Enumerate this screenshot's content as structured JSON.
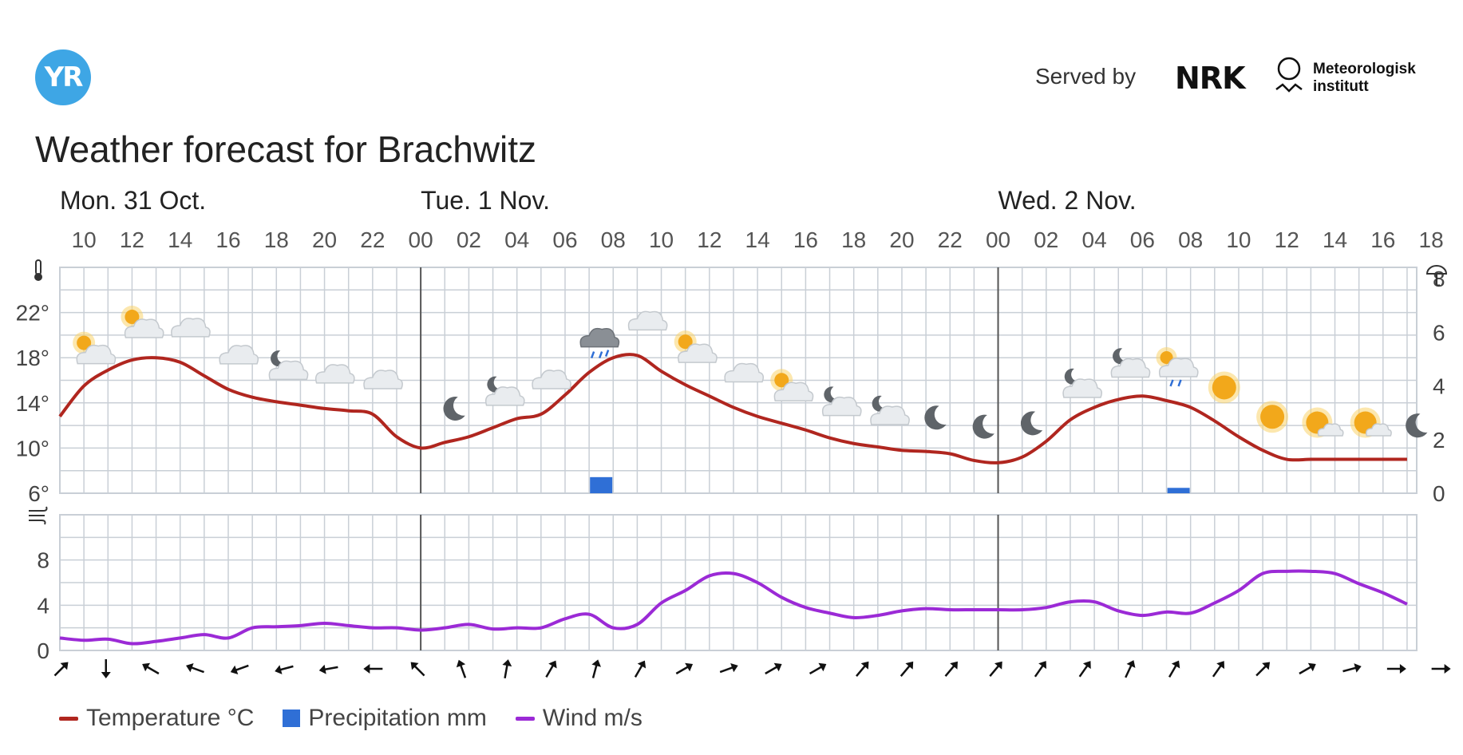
{
  "header": {
    "logo_text": "YR",
    "served_by": "Served by",
    "nrk_logo": "NRK",
    "met_logo_line1": "Meteorologisk",
    "met_logo_line2": "institutt"
  },
  "title": "Weather forecast for Brachwitz",
  "colors": {
    "temperature": "#b0261f",
    "precipitation": "#2f6fd6",
    "wind": "#9b2ad6",
    "grid": "#c9cfd6",
    "day_divider": "#555555",
    "arrow": "#111111"
  },
  "chart_data": {
    "type": "line",
    "x_unit": "hour",
    "days": [
      {
        "label": "Mon. 31 Oct.",
        "hour": 9
      },
      {
        "label": "Tue. 1 Nov.",
        "hour": 24
      },
      {
        "label": "Wed. 2 Nov.",
        "hour": 48
      }
    ],
    "hour_ticks": [
      "10",
      "12",
      "14",
      "16",
      "18",
      "20",
      "22",
      "00",
      "02",
      "04",
      "06",
      "08",
      "10",
      "12",
      "14",
      "16",
      "18",
      "20",
      "22",
      "00",
      "02",
      "04",
      "06",
      "08",
      "10",
      "12",
      "14",
      "16",
      "18"
    ],
    "x_start_hour": 9,
    "x_end_hour": 66,
    "day_dividers_hour": [
      24,
      48
    ],
    "temperature": {
      "name": "Temperature °C",
      "ylim": [
        6,
        26
      ],
      "yticks": [
        "22°",
        "18°",
        "14°",
        "10°",
        "6°"
      ],
      "ytick_values": [
        22,
        18,
        14,
        10,
        6
      ],
      "x": [
        9,
        10,
        11,
        12,
        13,
        14,
        15,
        16,
        17,
        18,
        19,
        20,
        21,
        22,
        23,
        24,
        25,
        26,
        27,
        28,
        29,
        30,
        31,
        32,
        33,
        34,
        35,
        36,
        37,
        38,
        39,
        40,
        41,
        42,
        43,
        44,
        45,
        46,
        47,
        48,
        49,
        50,
        51,
        52,
        53,
        54,
        55,
        56,
        57,
        58,
        59,
        60,
        61,
        62,
        63,
        64,
        65,
        66
      ],
      "y": [
        12.8,
        15.5,
        16.9,
        17.8,
        18.0,
        17.6,
        16.4,
        15.2,
        14.5,
        14.1,
        13.8,
        13.5,
        13.3,
        13.0,
        11.0,
        10.0,
        10.5,
        11.0,
        11.8,
        12.6,
        13.0,
        14.7,
        16.7,
        18.0,
        18.2,
        16.8,
        15.6,
        14.6,
        13.6,
        12.8,
        12.2,
        11.6,
        10.9,
        10.4,
        10.1,
        9.8,
        9.7,
        9.5,
        8.9,
        8.7,
        9.2,
        10.6,
        12.5,
        13.6,
        14.3,
        14.6,
        14.2,
        13.6,
        12.4,
        11.0,
        9.8,
        9.0,
        9.0,
        9.0,
        9.0,
        9.0,
        9.0,
        9.0
      ]
    },
    "precipitation": {
      "name": "Precipitation mm",
      "ylim": [
        0,
        8
      ],
      "yticks": [
        "8",
        "6",
        "4",
        "2",
        "0"
      ],
      "ytick_values": [
        8,
        6,
        4,
        2,
        0
      ],
      "bars": [
        {
          "hour": 31.5,
          "value": 0.6
        },
        {
          "hour": 55.5,
          "value": 0.2
        }
      ]
    },
    "wind": {
      "name": "Wind m/s",
      "ylim": [
        0,
        12
      ],
      "yticks": [
        "8",
        "4",
        "0"
      ],
      "ytick_values": [
        8,
        4,
        0
      ],
      "x": [
        9,
        10,
        11,
        12,
        13,
        14,
        15,
        16,
        17,
        18,
        19,
        20,
        21,
        22,
        23,
        24,
        25,
        26,
        27,
        28,
        29,
        30,
        31,
        32,
        33,
        34,
        35,
        36,
        37,
        38,
        39,
        40,
        41,
        42,
        43,
        44,
        45,
        46,
        47,
        48,
        49,
        50,
        51,
        52,
        53,
        54,
        55,
        56,
        57,
        58,
        59,
        60,
        61,
        62,
        63,
        64,
        65,
        66
      ],
      "y": [
        1.1,
        0.9,
        1.0,
        0.6,
        0.8,
        1.1,
        1.4,
        1.1,
        2.0,
        2.1,
        2.2,
        2.4,
        2.2,
        2.0,
        2.0,
        1.8,
        2.0,
        2.3,
        1.9,
        2.0,
        2.0,
        2.8,
        3.2,
        2.0,
        2.3,
        4.2,
        5.3,
        6.6,
        6.8,
        6.0,
        4.7,
        3.8,
        3.3,
        2.9,
        3.1,
        3.5,
        3.7,
        3.6,
        3.6,
        3.6,
        3.6,
        3.8,
        4.3,
        4.3,
        3.5,
        3.1,
        3.4,
        3.3,
        4.2,
        5.3,
        6.8,
        7.0,
        7.0,
        6.8,
        5.9,
        5.1,
        4.1,
        3.3
      ]
    },
    "weather_icons": [
      {
        "hour": 10,
        "icon": "partly-sunny"
      },
      {
        "hour": 12,
        "icon": "partly-sunny"
      },
      {
        "hour": 14,
        "icon": "cloudy"
      },
      {
        "hour": 16,
        "icon": "cloudy"
      },
      {
        "hour": 18,
        "icon": "partly-cloudy-night"
      },
      {
        "hour": 20,
        "icon": "cloudy"
      },
      {
        "hour": 22,
        "icon": "cloudy"
      },
      {
        "hour": 25,
        "icon": "clear-night"
      },
      {
        "hour": 27,
        "icon": "partly-cloudy-night"
      },
      {
        "hour": 29,
        "icon": "cloudy"
      },
      {
        "hour": 31,
        "icon": "rain-showers"
      },
      {
        "hour": 33,
        "icon": "cloudy"
      },
      {
        "hour": 35,
        "icon": "partly-sunny"
      },
      {
        "hour": 37,
        "icon": "cloudy"
      },
      {
        "hour": 39,
        "icon": "partly-sunny"
      },
      {
        "hour": 41,
        "icon": "partly-cloudy-night"
      },
      {
        "hour": 43,
        "icon": "partly-cloudy-night"
      },
      {
        "hour": 45,
        "icon": "clear-night"
      },
      {
        "hour": 47,
        "icon": "clear-night"
      },
      {
        "hour": 49,
        "icon": "clear-night"
      },
      {
        "hour": 51,
        "icon": "partly-cloudy-night"
      },
      {
        "hour": 53,
        "icon": "partly-cloudy-night"
      },
      {
        "hour": 55,
        "icon": "rain-showers-day"
      },
      {
        "hour": 57,
        "icon": "sunny"
      },
      {
        "hour": 59,
        "icon": "sunny"
      },
      {
        "hour": 61,
        "icon": "fair"
      },
      {
        "hour": 63,
        "icon": "fair"
      },
      {
        "hour": 65,
        "icon": "clear-night"
      }
    ],
    "wind_directions_deg": [
      45,
      180,
      300,
      290,
      250,
      255,
      260,
      270,
      315,
      340,
      10,
      30,
      15,
      30,
      60,
      70,
      60,
      60,
      40,
      40,
      40,
      40,
      35,
      35,
      25,
      30,
      35,
      45,
      60,
      75,
      90,
      90
    ]
  },
  "legend": {
    "temperature": "Temperature °C",
    "precipitation": "Precipitation mm",
    "wind": "Wind m/s"
  }
}
